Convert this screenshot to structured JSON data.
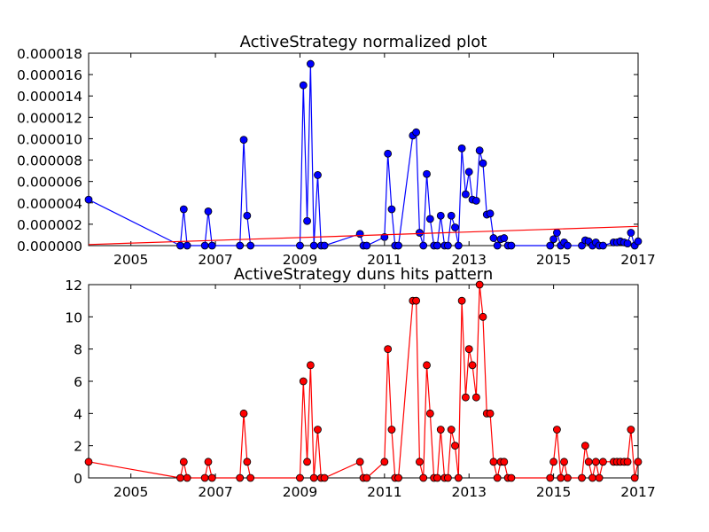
{
  "chart_data": [
    {
      "type": "line",
      "title": "ActiveStrategy normalized plot",
      "xlabel": "",
      "ylabel": "",
      "xlim": [
        2004.0,
        2017.0
      ],
      "ylim": [
        0,
        1.8e-05
      ],
      "x_tick_values": [
        2005,
        2007,
        2009,
        2011,
        2013,
        2015,
        2017
      ],
      "x_tick_labels": [
        "2005",
        "2007",
        "2009",
        "2011",
        "2013",
        "2015",
        "2017"
      ],
      "y_tick_values": [
        0,
        2e-06,
        4e-06,
        6e-06,
        8e-06,
        1e-05,
        1.2e-05,
        1.4e-05,
        1.6e-05,
        1.8e-05
      ],
      "y_tick_labels": [
        "0.000000",
        "0.000002",
        "0.000004",
        "0.000006",
        "0.000008",
        "0.000010",
        "0.000012",
        "0.000014",
        "0.000016",
        "0.000018"
      ],
      "grid": false,
      "colors": {
        "series": "#0000ff",
        "trend": "#ff0000"
      },
      "trend_line": {
        "x": [
          2004.0,
          2017.0
        ],
        "y": [
          1e-07,
          1.8e-06
        ]
      },
      "series": [
        {
          "x": [
            2004.0,
            2006.17,
            2006.25,
            2006.33,
            2006.75,
            2006.83,
            2006.92,
            2007.58,
            2007.67,
            2007.75,
            2007.83,
            2009.0,
            2009.08,
            2009.17,
            2009.25,
            2009.33,
            2009.42,
            2009.5,
            2009.58,
            2010.42,
            2010.5,
            2010.58,
            2011.0,
            2011.08,
            2011.17,
            2011.25,
            2011.33,
            2011.67,
            2011.75,
            2011.83,
            2011.92,
            2012.0,
            2012.08,
            2012.17,
            2012.25,
            2012.33,
            2012.42,
            2012.5,
            2012.58,
            2012.67,
            2012.75,
            2012.83,
            2012.92,
            2013.0,
            2013.08,
            2013.17,
            2013.25,
            2013.33,
            2013.42,
            2013.5,
            2013.58,
            2013.67,
            2013.75,
            2013.83,
            2013.92,
            2014.0,
            2014.92,
            2015.0,
            2015.08,
            2015.17,
            2015.25,
            2015.33,
            2015.67,
            2015.75,
            2015.83,
            2015.92,
            2016.0,
            2016.08,
            2016.17,
            2016.42,
            2016.5,
            2016.58,
            2016.67,
            2016.75,
            2016.83,
            2016.92,
            2017.0
          ],
          "y": [
            4.3e-06,
            0.0,
            3.4e-06,
            0.0,
            0.0,
            3.2e-06,
            0.0,
            0.0,
            9.9e-06,
            2.8e-06,
            0.0,
            0.0,
            1.5e-05,
            2.3e-06,
            1.7e-05,
            0.0,
            6.6e-06,
            0.0,
            0.0,
            1.1e-06,
            0.0,
            0.0,
            8e-07,
            8.6e-06,
            3.4e-06,
            0.0,
            0.0,
            1.03e-05,
            1.06e-05,
            1.2e-06,
            0.0,
            6.7e-06,
            2.5e-06,
            0.0,
            0.0,
            2.8e-06,
            0.0,
            0.0,
            2.8e-06,
            1.7e-06,
            0.0,
            9.1e-06,
            4.8e-06,
            6.9e-06,
            4.3e-06,
            4.2e-06,
            8.9e-06,
            7.7e-06,
            2.9e-06,
            3e-06,
            7e-07,
            0.0,
            6e-07,
            7e-07,
            0.0,
            0.0,
            0.0,
            6e-07,
            1.2e-06,
            0.0,
            3e-07,
            0.0,
            0.0,
            5e-07,
            4e-07,
            0.0,
            3e-07,
            0.0,
            0.0,
            3e-07,
            3e-07,
            4e-07,
            3e-07,
            2e-07,
            1.2e-06,
            0.0,
            4e-07
          ]
        }
      ]
    },
    {
      "type": "line",
      "title": "ActiveStrategy duns hits pattern",
      "xlabel": "",
      "ylabel": "",
      "xlim": [
        2004.0,
        2017.0
      ],
      "ylim": [
        0,
        12
      ],
      "x_tick_values": [
        2005,
        2007,
        2009,
        2011,
        2013,
        2015,
        2017
      ],
      "x_tick_labels": [
        "2005",
        "2007",
        "2009",
        "2011",
        "2013",
        "2015",
        "2017"
      ],
      "y_tick_values": [
        0,
        2,
        4,
        6,
        8,
        10,
        12
      ],
      "y_tick_labels": [
        "0",
        "2",
        "4",
        "6",
        "8",
        "10",
        "12"
      ],
      "grid": false,
      "colors": {
        "series": "#ff0000"
      },
      "series": [
        {
          "x": [
            2004.0,
            2006.17,
            2006.25,
            2006.33,
            2006.75,
            2006.83,
            2006.92,
            2007.58,
            2007.67,
            2007.75,
            2007.83,
            2009.0,
            2009.08,
            2009.17,
            2009.25,
            2009.33,
            2009.42,
            2009.5,
            2009.58,
            2010.42,
            2010.5,
            2010.58,
            2011.0,
            2011.08,
            2011.17,
            2011.25,
            2011.33,
            2011.67,
            2011.75,
            2011.83,
            2011.92,
            2012.0,
            2012.08,
            2012.17,
            2012.25,
            2012.33,
            2012.42,
            2012.5,
            2012.58,
            2012.67,
            2012.75,
            2012.83,
            2012.92,
            2013.0,
            2013.08,
            2013.17,
            2013.25,
            2013.33,
            2013.42,
            2013.5,
            2013.58,
            2013.67,
            2013.75,
            2013.83,
            2013.92,
            2014.0,
            2014.92,
            2015.0,
            2015.08,
            2015.17,
            2015.25,
            2015.33,
            2015.67,
            2015.75,
            2015.83,
            2015.92,
            2016.0,
            2016.08,
            2016.17,
            2016.42,
            2016.5,
            2016.58,
            2016.67,
            2016.75,
            2016.83,
            2016.92,
            2017.0
          ],
          "y": [
            1,
            0,
            1,
            0,
            0,
            1,
            0,
            0,
            4,
            1,
            0,
            0,
            6,
            1,
            7,
            0,
            3,
            0,
            0,
            1,
            0,
            0,
            1,
            8,
            3,
            0,
            0,
            11,
            11,
            1,
            0,
            7,
            4,
            0,
            0,
            3,
            0,
            0,
            3,
            2,
            0,
            11,
            5,
            8,
            7,
            5,
            12,
            10,
            4,
            4,
            1,
            0,
            1,
            1,
            0,
            0,
            0,
            1,
            3,
            0,
            1,
            0,
            0,
            2,
            1,
            0,
            1,
            0,
            1,
            1,
            1,
            1,
            1,
            1,
            3,
            0,
            1
          ]
        }
      ]
    }
  ]
}
